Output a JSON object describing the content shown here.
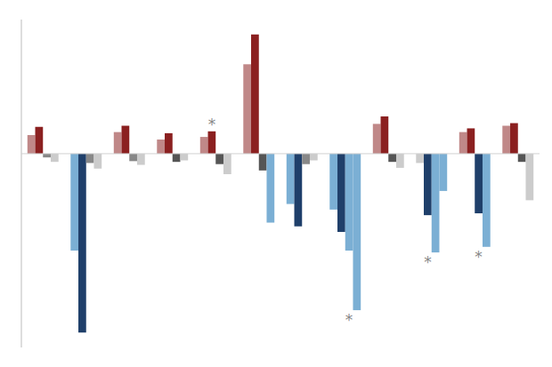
{
  "chart_data": {
    "type": "bar",
    "categories": [
      null,
      null,
      null,
      null,
      null,
      null,
      null,
      null,
      null,
      null,
      null,
      null
    ],
    "series": [
      {
        "values": [
          0.5,
          -2.6,
          0.58,
          0.38,
          0.45,
          2.4,
          -1.35,
          -1.5,
          0.8,
          -0.25,
          0.58,
          0.75
        ],
        "colors": [
          "#c08888",
          "#7BAFD4",
          "#c08888",
          "#c08888",
          "#c08888",
          "#c08888",
          "#7BAFD4",
          "#7BAFD4",
          "#c08888",
          "#cccccc",
          "#c08888",
          "#c08888"
        ]
      },
      {
        "values": [
          0.72,
          -4.8,
          0.75,
          0.55,
          0.6,
          3.2,
          -1.95,
          -2.1,
          1.0,
          -1.65,
          0.68,
          0.82
        ],
        "colors": [
          "#8B2020",
          "#1F3F6A",
          "#8B2020",
          "#8B2020",
          "#8B2020",
          "#8B2020",
          "#1F3F6A",
          "#1F3F6A",
          "#8B2020",
          "#1F3F6A",
          "#8B2020",
          "#8B2020"
        ]
      },
      {
        "values": [
          -0.1,
          -0.25,
          -0.2,
          -0.22,
          -0.28,
          -0.45,
          -0.28,
          -2.6,
          -0.22,
          -2.65,
          -1.6,
          -0.22
        ],
        "colors": [
          "#888888",
          "#888888",
          "#888888",
          "#555555",
          "#555555",
          "#555555",
          "#888888",
          "#7BAFD4",
          "#555555",
          "#7BAFD4",
          "#1F3F6A",
          "#555555"
        ]
      },
      {
        "values": [
          -0.22,
          -0.4,
          -0.3,
          -0.18,
          -0.55,
          -1.85,
          -0.18,
          -4.2,
          -0.38,
          -1.0,
          -2.5,
          -1.25
        ],
        "colors": [
          "#cccccc",
          "#cccccc",
          "#cccccc",
          "#cccccc",
          "#cccccc",
          "#7BAFD4",
          "#cccccc",
          "#7BAFD4",
          "#cccccc",
          "#7BAFD4",
          "#7BAFD4",
          "#cccccc"
        ]
      }
    ],
    "annotations": [
      {
        "text": "*",
        "category": 4,
        "series": 1,
        "side": "top"
      },
      {
        "text": "*",
        "category": 7,
        "series": 2,
        "side": "bottom"
      },
      {
        "text": "*",
        "category": 9,
        "series": 1,
        "side": "bottom"
      },
      {
        "text": "*",
        "category": 10,
        "series": 2,
        "side": "bottom"
      }
    ],
    "ylim": [
      -5.2,
      3.6
    ],
    "yticks": [],
    "grid": false,
    "tick_labels": false
  }
}
